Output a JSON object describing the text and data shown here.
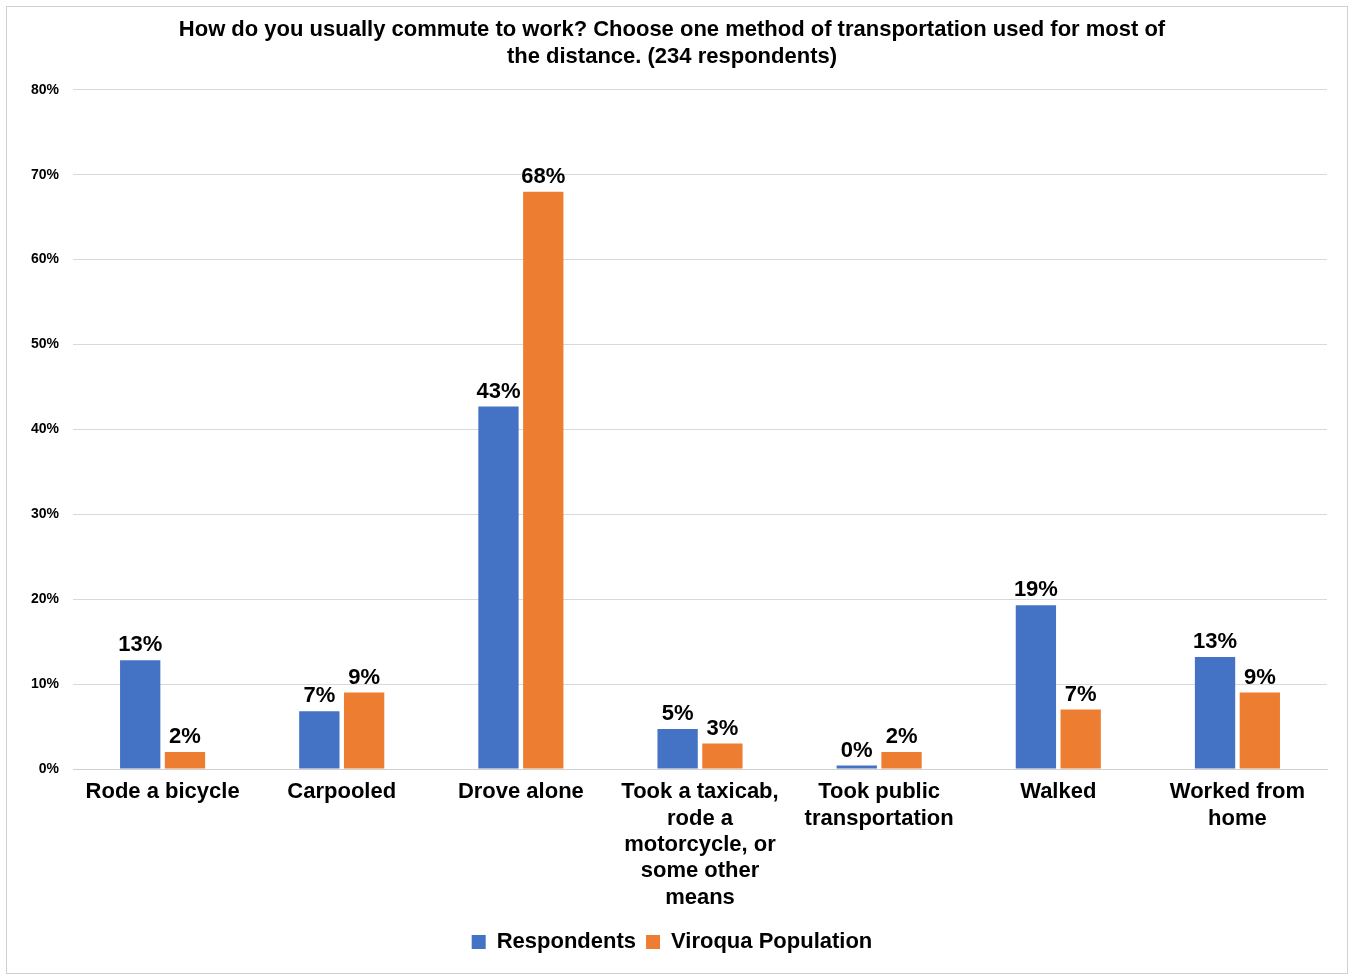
{
  "chart_data": {
    "type": "bar",
    "title": "How do you usually commute to work? Choose one method of transportation used for most of the distance. (234 respondents)",
    "categories": [
      "Rode a bicycle",
      "Carpooled",
      "Drove alone",
      "Took a taxicab, rode a motorcycle, or some other means",
      "Took public transportation",
      "Walked",
      "Worked from home"
    ],
    "series": [
      {
        "name": "Respondents",
        "color": "#4472c4",
        "values": [
          12.8,
          6.8,
          42.7,
          4.7,
          0.4,
          19.3,
          13.2
        ],
        "value_labels": [
          "13%",
          "7%",
          "43%",
          "5%",
          "0%",
          "19%",
          "13%"
        ]
      },
      {
        "name": "Viroqua Population",
        "color": "#ed7d31",
        "values": [
          2,
          9,
          68,
          3,
          2,
          7,
          9
        ],
        "value_labels": [
          "2%",
          "9%",
          "68%",
          "3%",
          "2%",
          "7%",
          "9%"
        ]
      }
    ],
    "ylim": [
      0,
      80
    ],
    "yticks": [
      {
        "value": 0,
        "label": "0%"
      },
      {
        "value": 10,
        "label": "10%"
      },
      {
        "value": 20,
        "label": "20%"
      },
      {
        "value": 30,
        "label": "30%"
      },
      {
        "value": 40,
        "label": "40%"
      },
      {
        "value": 50,
        "label": "50%"
      },
      {
        "value": 60,
        "label": "60%"
      },
      {
        "value": 70,
        "label": "70%"
      },
      {
        "value": 80,
        "label": "80%"
      }
    ],
    "grid": "y",
    "legend": "bottom"
  }
}
